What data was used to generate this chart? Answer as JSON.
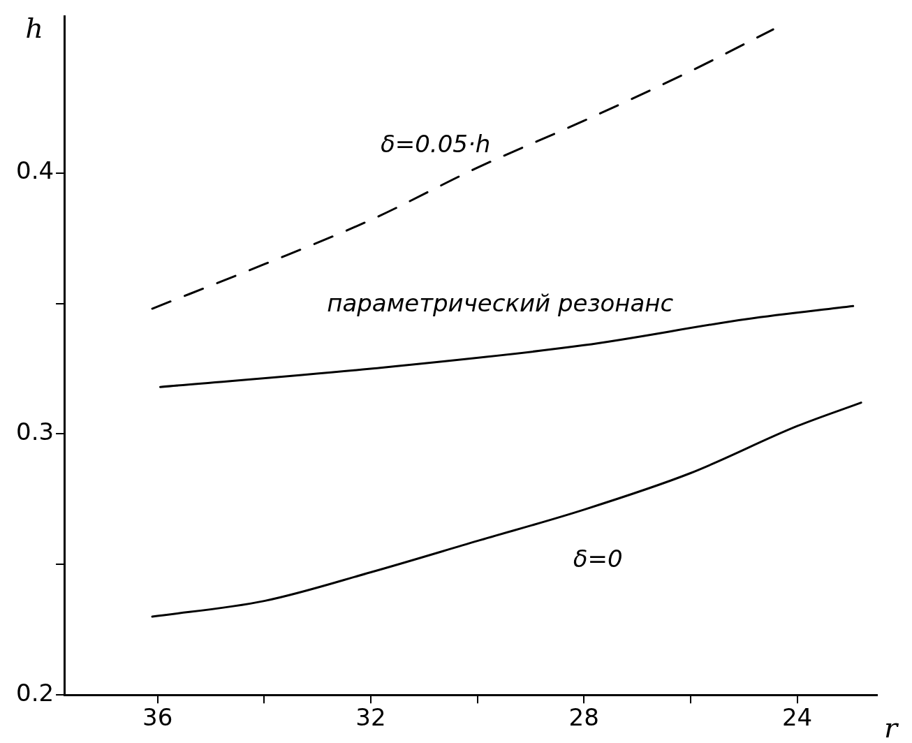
{
  "chart_data": {
    "type": "line",
    "xlabel": "r",
    "ylabel": "h",
    "xlim": [
      37.75,
      22.5
    ],
    "ylim": [
      0.2,
      0.46
    ],
    "xticks": [
      36,
      {
        "value": 34,
        "label": null
      },
      32,
      {
        "value": 30,
        "label": null
      },
      28,
      {
        "value": 26,
        "label": null
      },
      24
    ],
    "yticks": [
      0.2,
      {
        "value": 0.25,
        "label": null
      },
      0.3,
      {
        "value": 0.35,
        "label": null
      },
      0.4
    ],
    "grid": false,
    "legend": false,
    "marker": "none",
    "series": [
      {
        "color": "#000000",
        "line_style": "dashed",
        "x": [
          36.1,
          34,
          32,
          30,
          28,
          26,
          24.45
        ],
        "values": [
          0.348,
          0.365,
          0.382,
          0.402,
          0.42,
          0.439,
          0.455
        ]
      },
      {
        "color": "#000000",
        "line_style": "solid",
        "x": [
          35.95,
          32,
          28,
          24.95,
          22.95
        ],
        "values": [
          0.318,
          0.325,
          0.334,
          0.344,
          0.349
        ]
      },
      {
        "color": "#000000",
        "line_style": "solid",
        "x": [
          36.1,
          34,
          32,
          30,
          28,
          26,
          24,
          22.8
        ],
        "values": [
          0.23,
          0.236,
          0.247,
          0.259,
          0.271,
          0.285,
          0.303,
          0.312
        ]
      }
    ],
    "annotations": [
      "δ=0.05·h",
      "параметрический резонанс",
      "δ=0"
    ]
  }
}
